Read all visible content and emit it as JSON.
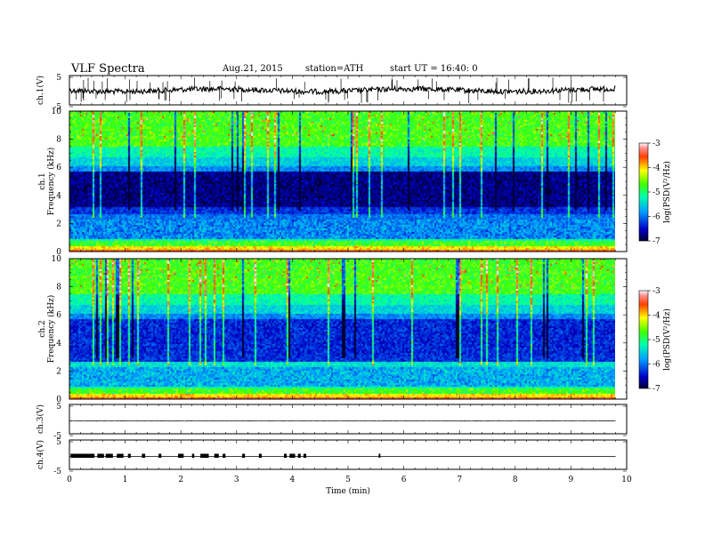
{
  "header": {
    "title": "VLF  Spectra",
    "date": "Aug.21, 2015",
    "station": "station=ATH",
    "start": "start  UT  =   16:40: 0"
  },
  "chart_data": {
    "type": "heatmap",
    "xlabel": "Time  (min)",
    "xlim": [
      0,
      10
    ],
    "xticks": [
      "0",
      "1",
      "2",
      "3",
      "4",
      "5",
      "6",
      "7",
      "8",
      "9",
      "10"
    ],
    "data_end_min": 9.8,
    "panels": [
      {
        "id": "ch1-waveform",
        "type": "line",
        "ylabel": "ch.1(V)",
        "ylim": [
          -5,
          5
        ],
        "ytick_labels": [
          "5",
          "-5"
        ]
      },
      {
        "id": "ch1-spectrogram",
        "type": "heatmap",
        "ylabel_top": "ch.1",
        "ylabel": "Frequency  (kHz)",
        "ylim": [
          0,
          10
        ],
        "ytick_labels": [
          "0",
          "2",
          "4",
          "6",
          "8",
          "10"
        ],
        "colorbar": {
          "label": "log(PSD(V²/Hz)",
          "range": [
            -7,
            -3
          ],
          "tick_labels": [
            "-3",
            "-4",
            "-5",
            "-6",
            "-7"
          ]
        }
      },
      {
        "id": "ch2-spectrogram",
        "type": "heatmap",
        "ylabel_top": "ch.2",
        "ylabel": "Frequency  (kHz)",
        "ylim": [
          0,
          10
        ],
        "ytick_labels": [
          "0",
          "2",
          "4",
          "6",
          "8",
          "10"
        ],
        "colorbar": {
          "label": "log(PSD(V²/Hz)",
          "range": [
            -7,
            -3
          ],
          "tick_labels": [
            "-3",
            "-4",
            "-5",
            "-6",
            "-7"
          ]
        }
      },
      {
        "id": "ch3-waveform",
        "type": "line",
        "ylabel": "ch.3(V)",
        "ylim": [
          -5,
          5
        ],
        "ytick_labels": [
          "5",
          "-5"
        ]
      },
      {
        "id": "ch4-waveform",
        "type": "line",
        "ylabel": "ch.4(V)",
        "ylim": [
          -5,
          5
        ],
        "ytick_labels": [
          "5",
          "-5"
        ]
      }
    ]
  }
}
